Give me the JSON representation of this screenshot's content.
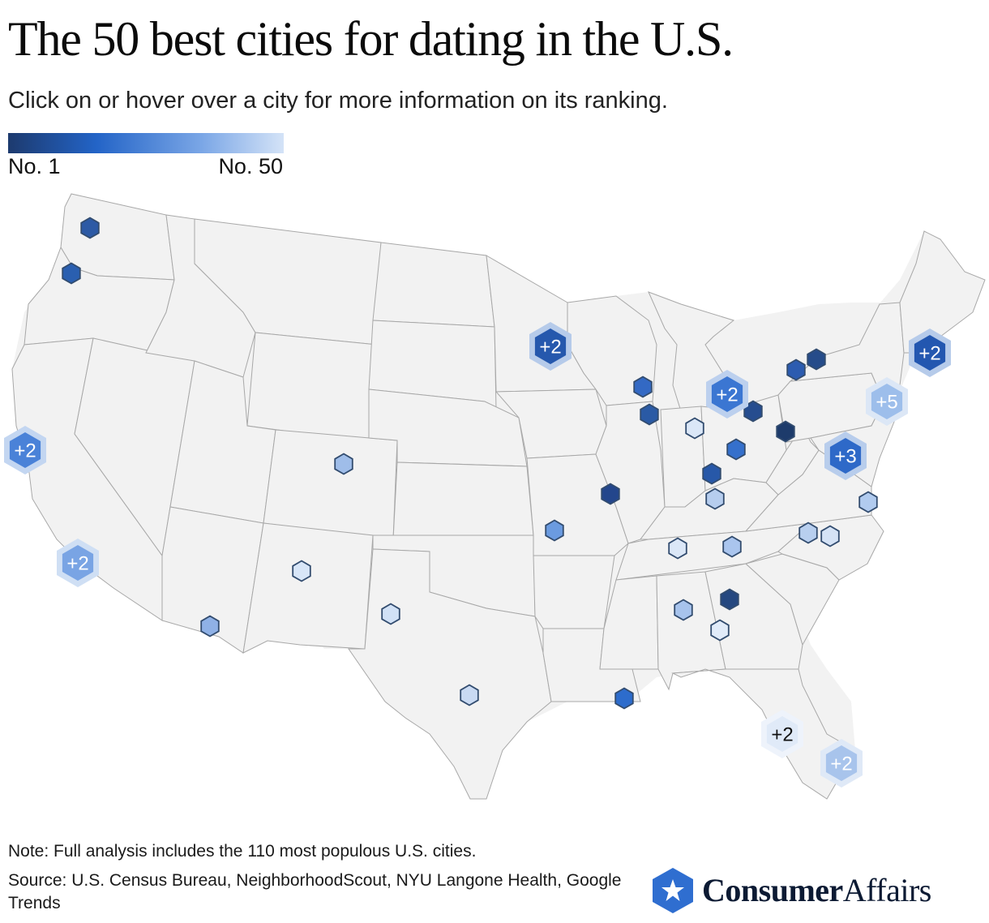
{
  "header": {
    "title": "The 50 best cities for dating in the U.S.",
    "subtitle": "Click on or hover over a city for more information on its ranking."
  },
  "legend": {
    "min_label": "No. 1",
    "max_label": "No. 50",
    "colors": [
      "#1d3a6e",
      "#2364c7",
      "#7aa6e6",
      "#d4e3f7"
    ]
  },
  "map": {
    "base_fill": "#f2f2f2",
    "border_color": "#a8a8a8",
    "cities": [
      {
        "region": "WA north",
        "color": "#2d5aa5"
      },
      {
        "region": "WA/OR",
        "color": "#2a5fb0"
      },
      {
        "region": "Denver, CO",
        "color": "#9fbde9"
      },
      {
        "region": "Kansas City",
        "color": "#6b9be0"
      },
      {
        "region": "Phoenix, AZ",
        "color": "#8fb1e6"
      },
      {
        "region": "Albuquerque, NM",
        "color": "#d8e6f8"
      },
      {
        "region": "Dallas, TX",
        "color": "#d1e1f6"
      },
      {
        "region": "Austin, TX",
        "color": "#c9daf3"
      },
      {
        "region": "New Orleans, LA",
        "color": "#2d6ccc"
      },
      {
        "region": "Milwaukee, WI",
        "color": "#3369c4"
      },
      {
        "region": "Chicago, IL",
        "color": "#2a5aa5"
      },
      {
        "region": "St. Louis, MO",
        "color": "#23468c"
      },
      {
        "region": "Indianapolis, IN",
        "color": "#dbe7f7"
      },
      {
        "region": "Toledo, OH",
        "color": "#264d8f"
      },
      {
        "region": "Columbus, OH",
        "color": "#3570cc"
      },
      {
        "region": "Cincinnati, OH",
        "color": "#2758a8"
      },
      {
        "region": "Louisville, KY",
        "color": "#b6cdee"
      },
      {
        "region": "Pittsburgh, PA",
        "color": "#1d3b6b"
      },
      {
        "region": "Buffalo, NY",
        "color": "#2c5cb0"
      },
      {
        "region": "Rochester, NY",
        "color": "#264c8a"
      },
      {
        "region": "Nashville, TN",
        "color": "#dbe7f7"
      },
      {
        "region": "Knoxville, TN",
        "color": "#aac5ee"
      },
      {
        "region": "Atlanta, GA",
        "color": "#254880"
      },
      {
        "region": "Birmingham, AL",
        "color": "#a7c3ec"
      },
      {
        "region": "Columbus, GA",
        "color": "#e1ebf9"
      },
      {
        "region": "Raleigh, NC",
        "color": "#b8cfef"
      },
      {
        "region": "Durham, NC",
        "color": "#d5e3f6"
      },
      {
        "region": "Norfolk, VA",
        "color": "#b1cbef"
      }
    ],
    "clusters": [
      {
        "label": "+2",
        "region": "Minneapolis",
        "color": "#2558ad",
        "halo": "#b6cbea",
        "text_color": "#ffffff"
      },
      {
        "label": "+2",
        "region": "Detroit",
        "color": "#3b76d2",
        "halo": "#bcd0ee",
        "text_color": "#ffffff"
      },
      {
        "label": "+2",
        "region": "Boston",
        "color": "#2357b0",
        "halo": "#b6cbea",
        "text_color": "#ffffff"
      },
      {
        "label": "+5",
        "region": "New York",
        "color": "#9dbeeb",
        "halo": "#dce7f6",
        "text_color": "#ffffff"
      },
      {
        "label": "+3",
        "region": "Washington DC",
        "color": "#2e69c8",
        "halo": "#b8cdec",
        "text_color": "#ffffff"
      },
      {
        "label": "+2",
        "region": "San Francisco",
        "color": "#4a82d8",
        "halo": "#c3d6f1",
        "text_color": "#ffffff"
      },
      {
        "label": "+2",
        "region": "Los Angeles",
        "color": "#79a4e4",
        "halo": "#cfdff4",
        "text_color": "#ffffff"
      },
      {
        "label": "+2",
        "region": "Orlando / Tampa",
        "color": "#e0eaf8",
        "halo": "#eef3fb",
        "text_color": "#111111"
      },
      {
        "label": "+2",
        "region": "Miami",
        "color": "#a8c4ec",
        "halo": "#dfe9f7",
        "text_color": "#ffffff"
      }
    ]
  },
  "footer": {
    "note": "Note: Full analysis includes the 110 most populous U.S. cities.",
    "source": "Source: U.S. Census Bureau, NeighborhoodScout, NYU Langone Health, Google Trends",
    "brand_bold": "Consumer",
    "brand_regular": "Affairs",
    "brand_icon": "star-hexagon-icon",
    "brand_color": "#2f6ed0"
  }
}
